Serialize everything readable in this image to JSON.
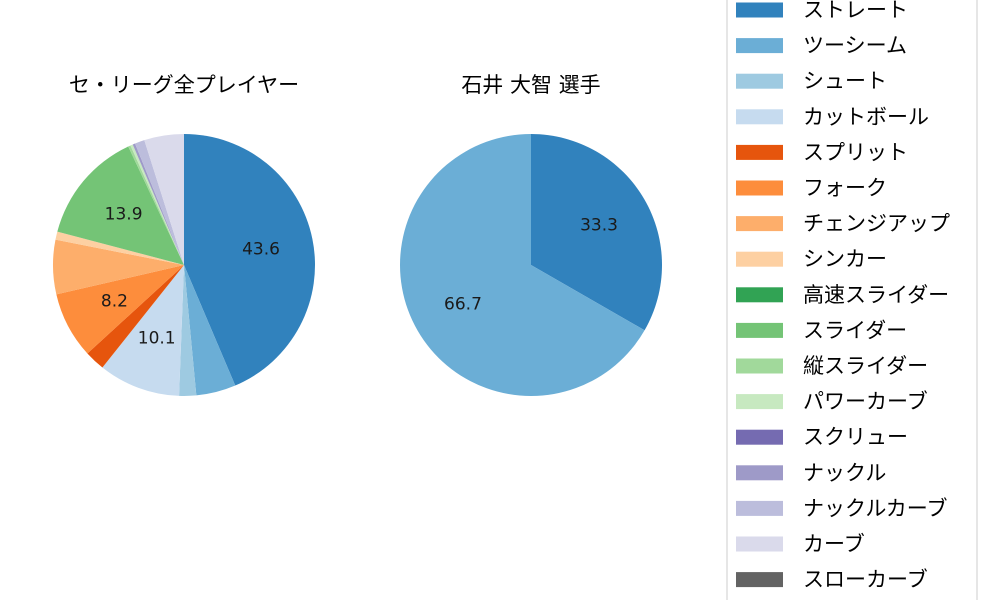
{
  "chart_data": [
    {
      "type": "pie",
      "title": "セ・リーグ全プレイヤー",
      "start_angle_deg": 90,
      "direction": "clockwise",
      "slices": [
        {
          "name": "ストレート",
          "value": 43.6,
          "color": "#3182bd",
          "label": "43.6"
        },
        {
          "name": "ツーシーム",
          "value": 4.9,
          "color": "#6baed6",
          "label": ""
        },
        {
          "name": "シュート",
          "value": 2.1,
          "color": "#9ecae1",
          "label": ""
        },
        {
          "name": "カットボール",
          "value": 10.1,
          "color": "#c6dbef",
          "label": "10.1"
        },
        {
          "name": "スプリット",
          "value": 2.5,
          "color": "#e6550d",
          "label": ""
        },
        {
          "name": "フォーク",
          "value": 8.2,
          "color": "#fd8d3c",
          "label": "8.2"
        },
        {
          "name": "チェンジアップ",
          "value": 6.7,
          "color": "#fdae6b",
          "label": ""
        },
        {
          "name": "シンカー",
          "value": 1.0,
          "color": "#fdd0a2",
          "label": ""
        },
        {
          "name": "高速スライダー",
          "value": 0.0,
          "color": "#31a354",
          "label": ""
        },
        {
          "name": "スライダー",
          "value": 13.9,
          "color": "#74c476",
          "label": "13.9"
        },
        {
          "name": "縦スライダー",
          "value": 0.3,
          "color": "#a1d99b",
          "label": ""
        },
        {
          "name": "パワーカーブ",
          "value": 0.3,
          "color": "#c7e9c0",
          "label": ""
        },
        {
          "name": "スクリュー",
          "value": 0.0,
          "color": "#756bb1",
          "label": ""
        },
        {
          "name": "ナックル",
          "value": 0.3,
          "color": "#9e9ac8",
          "label": ""
        },
        {
          "name": "ナックルカーブ",
          "value": 1.2,
          "color": "#bcbddc",
          "label": ""
        },
        {
          "name": "カーブ",
          "value": 4.9,
          "color": "#dadaeb",
          "label": ""
        },
        {
          "name": "スローカーブ",
          "value": 0.0,
          "color": "#636363",
          "label": ""
        }
      ]
    },
    {
      "type": "pie",
      "title": "石井 大智  選手",
      "start_angle_deg": 90,
      "direction": "clockwise",
      "slices": [
        {
          "name": "ストレート",
          "value": 33.3,
          "color": "#3182bd",
          "label": "33.3"
        },
        {
          "name": "ツーシーム",
          "value": 66.7,
          "color": "#6baed6",
          "label": "66.7"
        }
      ]
    }
  ],
  "legend": {
    "placement": "right",
    "entries": [
      {
        "name": "ストレート",
        "color": "#3182bd"
      },
      {
        "name": "ツーシーム",
        "color": "#6baed6"
      },
      {
        "name": "シュート",
        "color": "#9ecae1"
      },
      {
        "name": "カットボール",
        "color": "#c6dbef"
      },
      {
        "name": "スプリット",
        "color": "#e6550d"
      },
      {
        "name": "フォーク",
        "color": "#fd8d3c"
      },
      {
        "name": "チェンジアップ",
        "color": "#fdae6b"
      },
      {
        "name": "シンカー",
        "color": "#fdd0a2"
      },
      {
        "name": "高速スライダー",
        "color": "#31a354"
      },
      {
        "name": "スライダー",
        "color": "#74c476"
      },
      {
        "name": "縦スライダー",
        "color": "#a1d99b"
      },
      {
        "name": "パワーカーブ",
        "color": "#c7e9c0"
      },
      {
        "name": "スクリュー",
        "color": "#756bb1"
      },
      {
        "name": "ナックル",
        "color": "#9e9ac8"
      },
      {
        "name": "ナックルカーブ",
        "color": "#bcbddc"
      },
      {
        "name": "カーブ",
        "color": "#dadaeb"
      },
      {
        "name": "スローカーブ",
        "color": "#636363"
      }
    ]
  }
}
